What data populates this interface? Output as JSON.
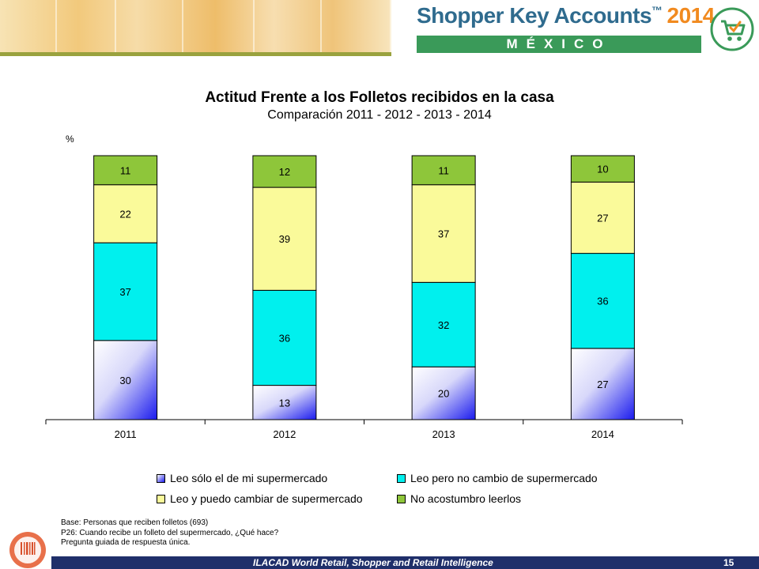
{
  "header": {
    "brand_name": "Shopper Key Accounts",
    "brand_tm": "™",
    "brand_year": "2014",
    "country": "MÉXICO",
    "accent": "#2f6b8e",
    "year_color": "#f18a1f",
    "country_bar_color": "#3a9a59",
    "logo_icon": "shopping-cart-check-icon"
  },
  "chart_data": {
    "type": "stacked-bar",
    "title": "Actitud Frente a los Folletos recibidos en la casa",
    "subtitle": "Comparación  2011 - 2012 - 2013 - 2014",
    "ylabel": "%",
    "categories": [
      "2011",
      "2012",
      "2013",
      "2014"
    ],
    "series": [
      {
        "name": "Leo sólo el de mi supermercado",
        "color": "#1a1aee",
        "values": [
          30,
          13,
          20,
          27
        ]
      },
      {
        "name": "Leo pero no cambio de supermercado",
        "color": "#00f0ee",
        "values": [
          37,
          36,
          32,
          36
        ]
      },
      {
        "name": "Leo y puedo cambiar de supermercado",
        "color": "#fafa9a",
        "values": [
          22,
          39,
          37,
          27
        ]
      },
      {
        "name": "No acostumbro leerlos",
        "color": "#8ec63a",
        "values": [
          11,
          12,
          11,
          10
        ]
      }
    ],
    "legend_position": "bottom",
    "grid": false
  },
  "footnotes": [
    "Base: Personas que reciben folletos (693)",
    "P26: Cuando recibe un folleto del supermercado, ¿Qué hace?",
    "Pregunta guiada de respuesta única."
  ],
  "footer": {
    "text": "ILACAD World Retail, Shopper and Retail Intelligence",
    "page_number": "15",
    "bar_color": "#1f2f6a"
  }
}
